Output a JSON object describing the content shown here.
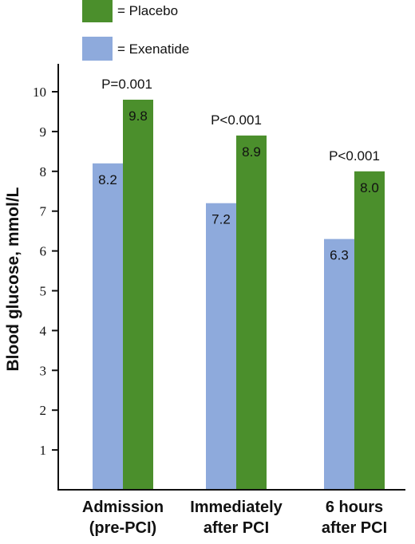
{
  "chart_data": {
    "type": "bar",
    "categories": [
      [
        "Admission",
        "(pre-PCI)"
      ],
      [
        "Immediately",
        "after PCI"
      ],
      [
        "6 hours",
        "after PCI"
      ]
    ],
    "series": [
      {
        "name": "Exenatide",
        "color": "#8eaadc",
        "values": [
          8.2,
          7.2,
          6.3
        ],
        "labels": [
          "8.2",
          "7.2",
          "6.3"
        ]
      },
      {
        "name": "Placebo",
        "color": "#4b8f2c",
        "values": [
          9.8,
          8.9,
          8.0
        ],
        "labels": [
          "9.8",
          "8.9",
          "8.0"
        ]
      }
    ],
    "legend": {
      "placement": "top-left",
      "entries": [
        {
          "series": 1,
          "text": "= Placebo"
        },
        {
          "series": 0,
          "text": "= Exenatide"
        }
      ]
    },
    "p_values": [
      "P=0.001",
      "P<0.001",
      "P<0.001"
    ],
    "ylabel": "Blood glucose, mmol/L",
    "xlabel": "",
    "ylim": [
      0,
      10.3
    ],
    "yticks": [
      1,
      2,
      3,
      4,
      5,
      6,
      7,
      8,
      9,
      10
    ],
    "grid": false
  }
}
